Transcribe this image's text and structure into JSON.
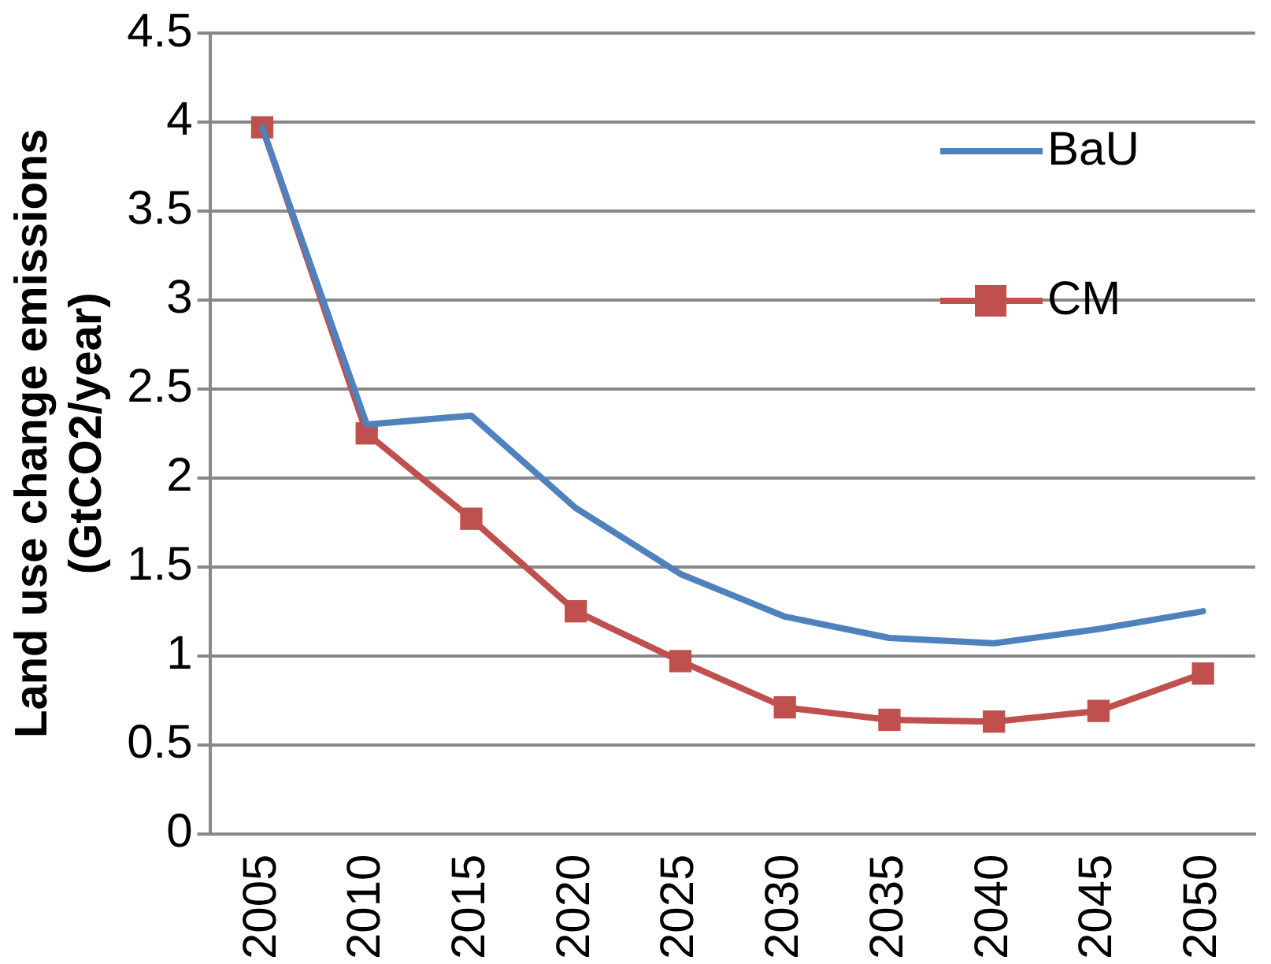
{
  "chart_data": {
    "type": "line",
    "ylabel": "Land use change emissions\n(GtCO2/year)",
    "categories": [
      "2005",
      "2010",
      "2015",
      "2020",
      "2025",
      "2030",
      "2035",
      "2040",
      "2045",
      "2050"
    ],
    "series": [
      {
        "name": "BaU",
        "color": "#4f81bd",
        "marker": "none",
        "values": [
          3.97,
          2.3,
          2.35,
          1.83,
          1.46,
          1.22,
          1.1,
          1.07,
          1.15,
          1.25
        ]
      },
      {
        "name": "CM",
        "color": "#c0504d",
        "marker": "square",
        "values": [
          3.97,
          2.25,
          1.77,
          1.25,
          0.97,
          0.71,
          0.64,
          0.63,
          0.69,
          0.9
        ]
      }
    ],
    "ylim": [
      0,
      4.5
    ],
    "yticks": [
      0,
      0.5,
      1,
      1.5,
      2,
      2.5,
      3,
      3.5,
      4,
      4.5
    ],
    "grid": "y",
    "legend": "top right"
  }
}
